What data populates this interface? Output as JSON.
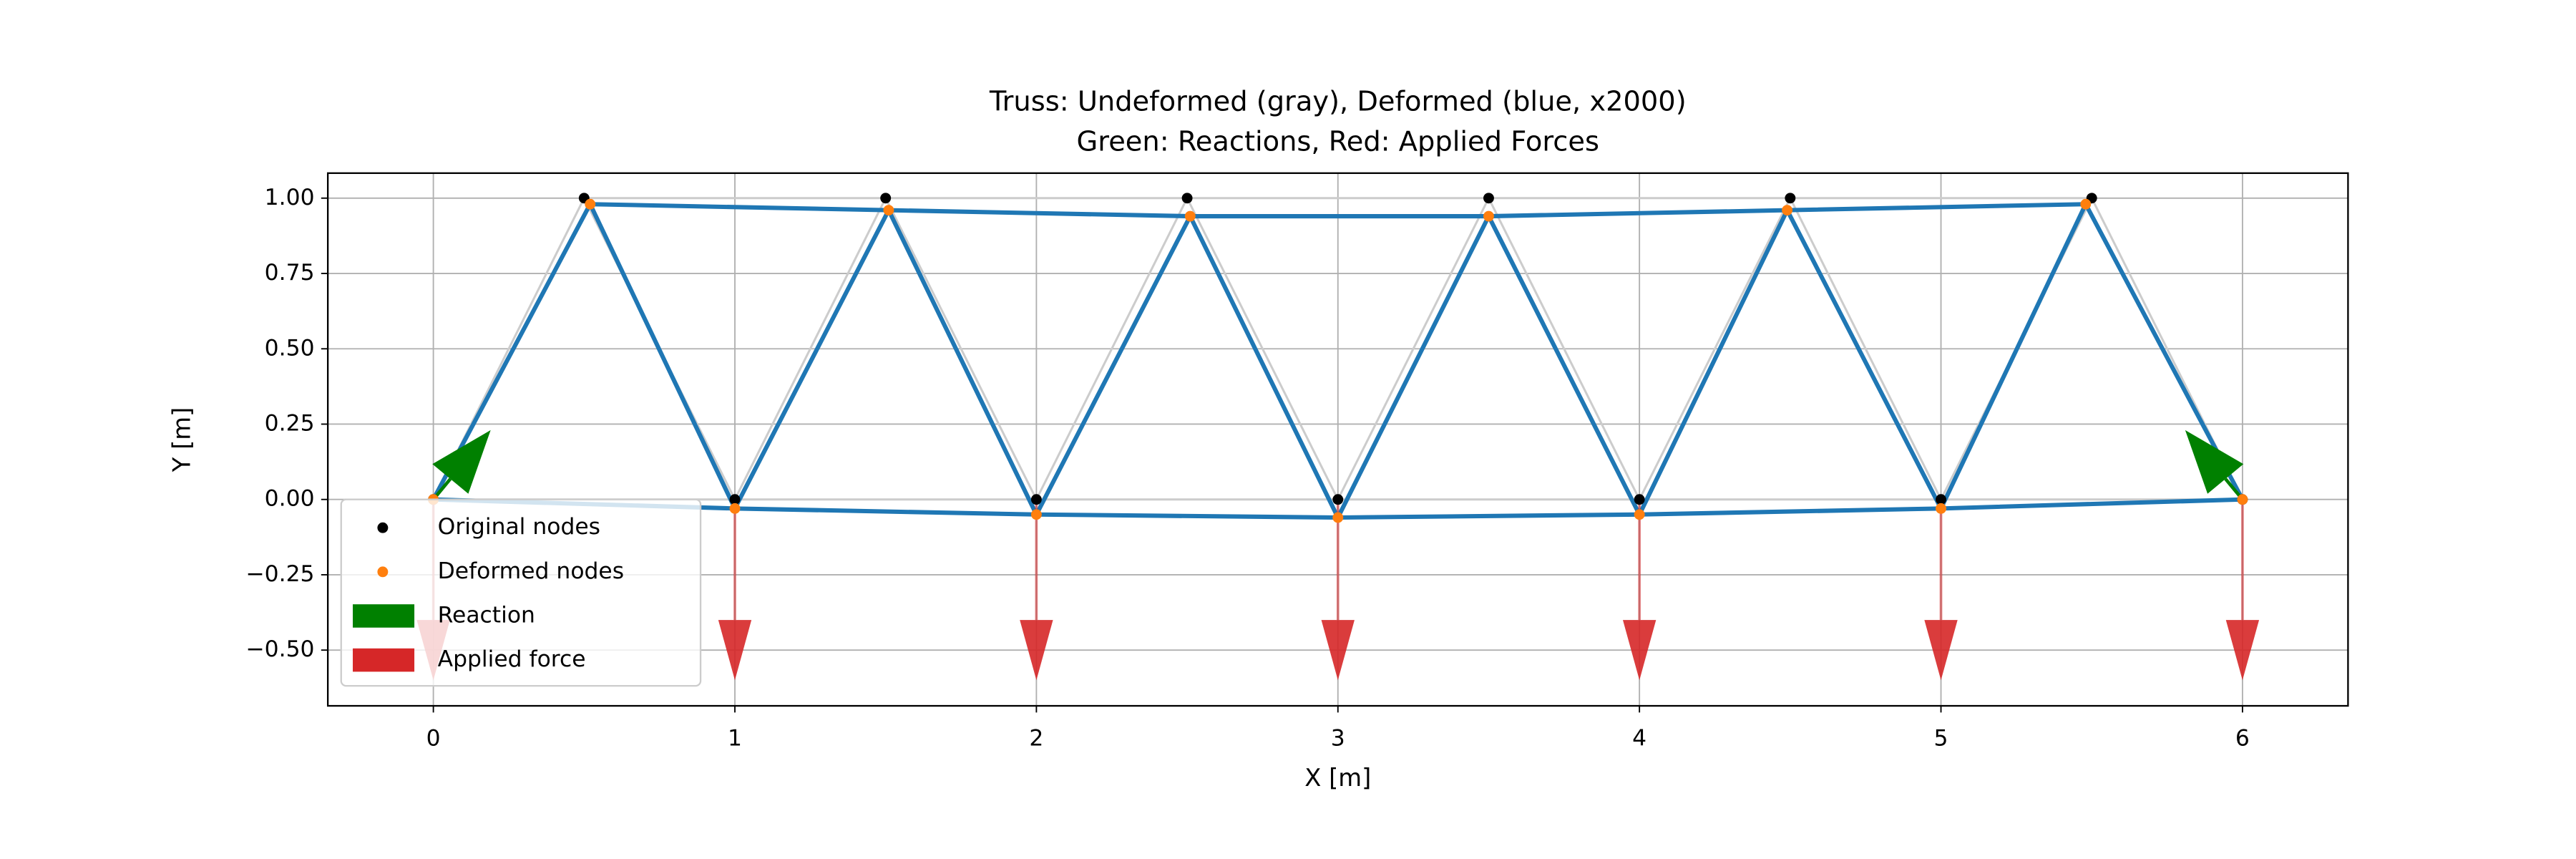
{
  "chart_data": {
    "type": "truss",
    "title": [
      "Truss: Undeformed (gray), Deformed (blue, x2000)",
      "Green: Reactions, Red: Applied Forces"
    ],
    "x_label": "X [m]",
    "y_label": "Y [m]",
    "xlim": [
      -0.35,
      6.35
    ],
    "ylim": [
      -0.685,
      1.083
    ],
    "xticks": [
      0,
      1,
      2,
      3,
      4,
      5,
      6
    ],
    "yticks": [
      {
        "value": -0.5,
        "label": "−0.50"
      },
      {
        "value": -0.25,
        "label": "−0.25"
      },
      {
        "value": 0,
        "label": "0.00"
      },
      {
        "value": 0.25,
        "label": "0.25"
      },
      {
        "value": 0.5,
        "label": "0.50"
      },
      {
        "value": 0.75,
        "label": "0.75"
      },
      {
        "value": 1,
        "label": "1.00"
      }
    ],
    "grid": true,
    "legend_position": "lower left",
    "original_nodes": {
      "name": "Original nodes",
      "color": "#000000",
      "member_color": "#cccccc",
      "x": [
        0,
        1,
        2,
        3,
        4,
        5,
        6,
        0.5,
        1.5,
        2.5,
        3.5,
        4.5,
        5.5
      ],
      "y": [
        0,
        0,
        0,
        0,
        0,
        0,
        0,
        1,
        1,
        1,
        1,
        1,
        1
      ]
    },
    "deformed_nodes": {
      "name": "Deformed nodes",
      "color": "#ff7f0e",
      "member_color": "#1f77b4",
      "x": [
        0,
        1,
        2,
        3,
        4,
        5,
        6,
        0.52,
        1.51,
        2.51,
        3.5,
        4.49,
        5.48
      ],
      "y": [
        0,
        -0.03,
        -0.05,
        -0.06,
        -0.05,
        -0.03,
        0,
        0.98,
        0.96,
        0.94,
        0.94,
        0.96,
        0.98
      ]
    },
    "reactions": {
      "name": "Reaction",
      "color": "#008000",
      "x": [
        0,
        6
      ],
      "y": [
        0,
        0
      ],
      "dx": [
        0.19,
        -0.19
      ],
      "dy": [
        0.23,
        0.23
      ]
    },
    "applied_forces": {
      "name": "Applied force",
      "color": "#d62728",
      "x": [
        0,
        1,
        2,
        3,
        4,
        5,
        6
      ],
      "y": [
        0,
        0,
        0,
        0,
        0,
        0,
        0
      ],
      "dy": [
        -0.6,
        -0.6,
        -0.6,
        -0.6,
        -0.6,
        -0.6,
        -0.6
      ]
    }
  }
}
